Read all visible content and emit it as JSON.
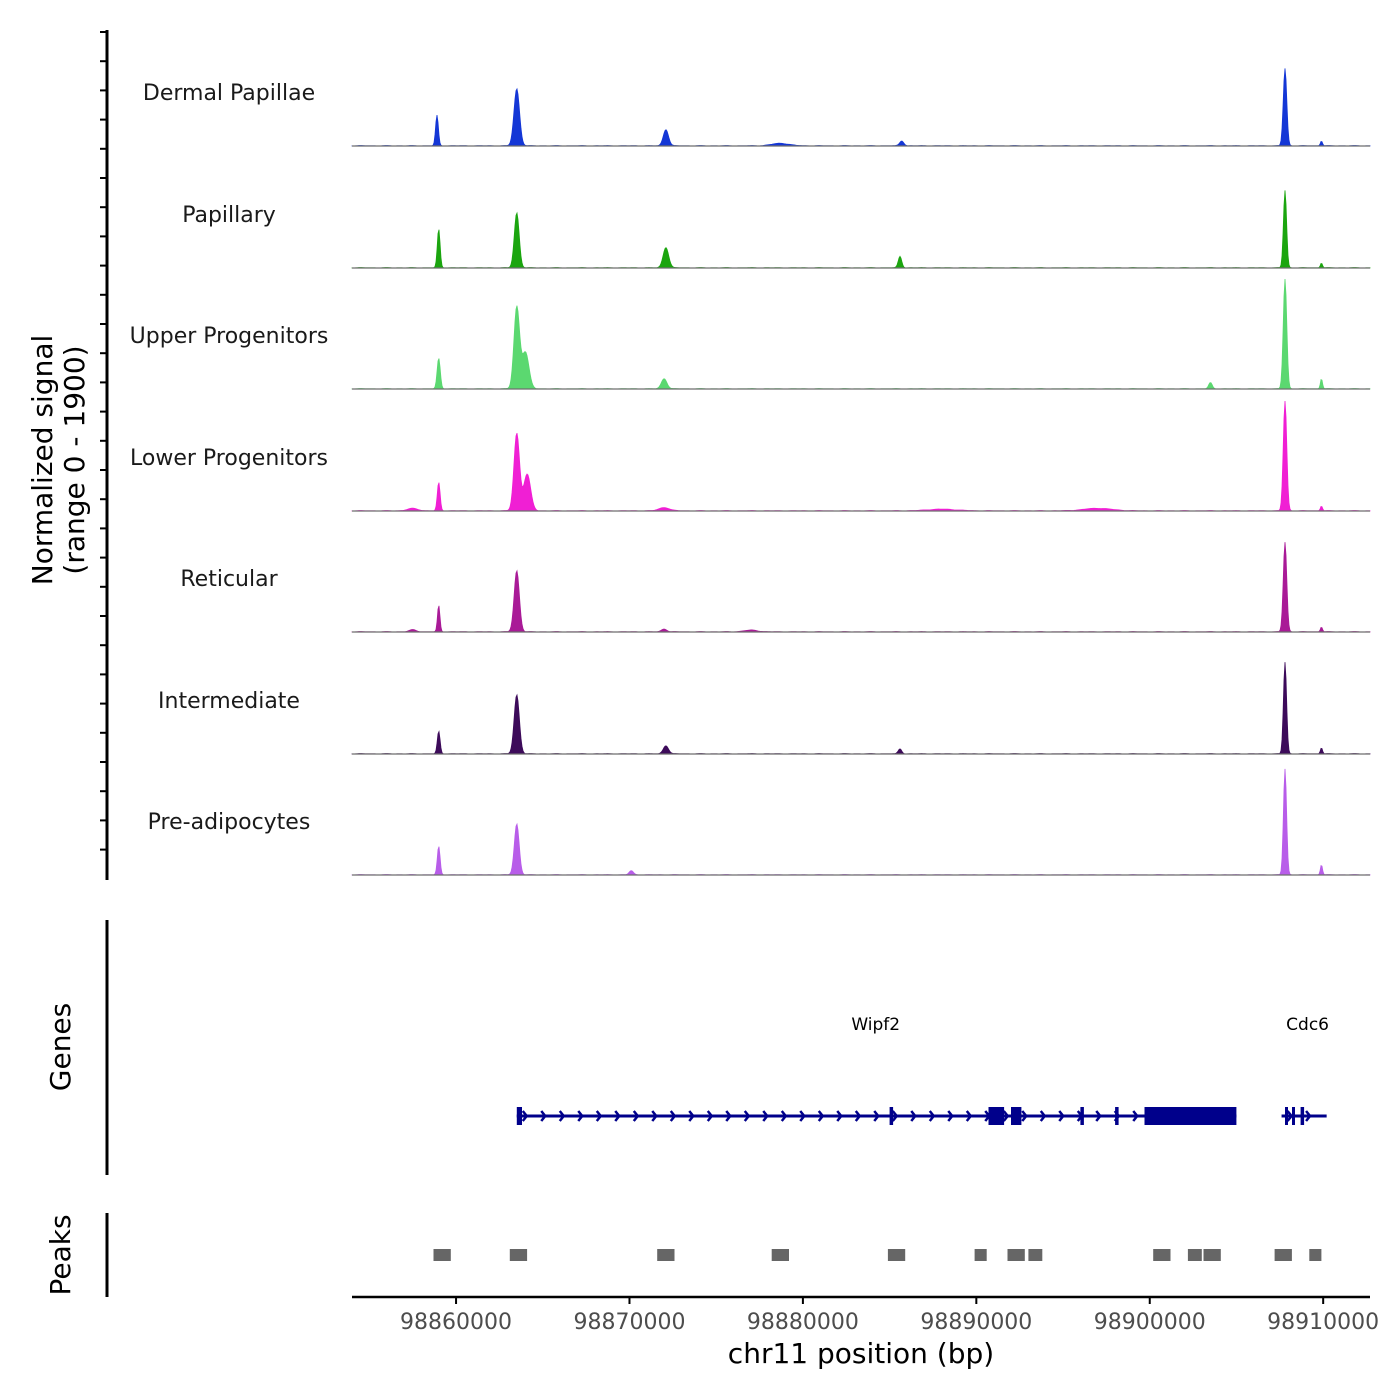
{
  "chart_data": {
    "type": "area",
    "title": "",
    "ylabel_line1": "Normalized signal",
    "ylabel_line2": "(range 0 - 1900)",
    "ylim": [
      0,
      1900
    ],
    "xlabel": "chr11 position (bp)",
    "xlim": [
      98854000,
      98912700
    ],
    "xticks": [
      98860000,
      98870000,
      98880000,
      98890000,
      98900000,
      98910000
    ],
    "xtick_labels": [
      "98860000",
      "98870000",
      "98880000",
      "98890000",
      "98900000",
      "98910000"
    ],
    "tracks": [
      {
        "name": "Dermal Papillae",
        "color": "#1437D6",
        "peaks": [
          [
            98858900,
            750,
            80
          ],
          [
            98863500,
            1400,
            160
          ],
          [
            98872100,
            400,
            150
          ],
          [
            98878700,
            60,
            500
          ],
          [
            98885700,
            120,
            120
          ],
          [
            98907800,
            1900,
            100
          ],
          [
            98909900,
            120,
            60
          ]
        ]
      },
      {
        "name": "Papillary",
        "color": "#1BA50F",
        "peaks": [
          [
            98859000,
            950,
            80
          ],
          [
            98863500,
            1350,
            140
          ],
          [
            98872100,
            500,
            160
          ],
          [
            98885600,
            280,
            100
          ],
          [
            98907800,
            1900,
            90
          ],
          [
            98909900,
            120,
            60
          ]
        ]
      },
      {
        "name": "Upper Progenitors",
        "color": "#5BD870",
        "peaks": [
          [
            98859000,
            750,
            90
          ],
          [
            98863500,
            2000,
            160
          ],
          [
            98864000,
            900,
            200
          ],
          [
            98872000,
            250,
            160
          ],
          [
            98903500,
            150,
            100
          ],
          [
            98907800,
            2700,
            100
          ],
          [
            98909900,
            250,
            60
          ]
        ]
      },
      {
        "name": "Lower Progenitors",
        "color": "#F01FD4",
        "peaks": [
          [
            98857500,
            60,
            300
          ],
          [
            98859000,
            700,
            80
          ],
          [
            98863500,
            1900,
            160
          ],
          [
            98864100,
            900,
            200
          ],
          [
            98872000,
            80,
            300
          ],
          [
            98888000,
            40,
            800
          ],
          [
            98897000,
            60,
            800
          ],
          [
            98907800,
            2700,
            100
          ],
          [
            98909900,
            120,
            60
          ]
        ]
      },
      {
        "name": "Reticular",
        "color": "#A91A97",
        "peaks": [
          [
            98857500,
            50,
            200
          ],
          [
            98859000,
            650,
            70
          ],
          [
            98863500,
            1500,
            150
          ],
          [
            98872000,
            70,
            150
          ],
          [
            98877000,
            40,
            400
          ],
          [
            98907800,
            2200,
            100
          ],
          [
            98909900,
            120,
            60
          ]
        ]
      },
      {
        "name": "Intermediate",
        "color": "#3D0B5A",
        "peaks": [
          [
            98859000,
            550,
            80
          ],
          [
            98863500,
            1450,
            150
          ],
          [
            98872100,
            200,
            150
          ],
          [
            98885600,
            120,
            100
          ],
          [
            98907800,
            2250,
            90
          ],
          [
            98909900,
            150,
            60
          ]
        ]
      },
      {
        "name": "Pre-adipocytes",
        "color": "#B85DE9",
        "peaks": [
          [
            98859000,
            700,
            80
          ],
          [
            98863500,
            1250,
            140
          ],
          [
            98870100,
            100,
            120
          ],
          [
            98907800,
            2600,
            90
          ],
          [
            98909900,
            250,
            60
          ]
        ]
      }
    ],
    "genes_label": "Genes",
    "genes": [
      {
        "name": "Wipf2",
        "label_pos": 98884200,
        "start": 98863500,
        "end": 98905000,
        "strand": "+",
        "exons": [
          [
            98863500,
            98863800
          ],
          [
            98885000,
            98885200
          ],
          [
            98890700,
            98891600
          ],
          [
            98892000,
            98892600
          ],
          [
            98896000,
            98896200
          ],
          [
            98898000,
            98898200
          ],
          [
            98899700,
            98905000
          ]
        ]
      },
      {
        "name": "Cdc6",
        "label_pos": 98909100,
        "start": 98907600,
        "end": 98910200,
        "strand": "+",
        "exons": [
          [
            98907800,
            98907950
          ],
          [
            98908200,
            98908350
          ],
          [
            98908700,
            98908900
          ]
        ]
      }
    ],
    "peaks_label": "Peaks",
    "peak_color": "#666666",
    "peak_regions": [
      [
        98858700,
        98859700
      ],
      [
        98863100,
        98864100
      ],
      [
        98871600,
        98872600
      ],
      [
        98878200,
        98879200
      ],
      [
        98884900,
        98885900
      ],
      [
        98889900,
        98890600
      ],
      [
        98891800,
        98892800
      ],
      [
        98893000,
        98893800
      ],
      [
        98900200,
        98901200
      ],
      [
        98902200,
        98903000
      ],
      [
        98903100,
        98904100
      ],
      [
        98907200,
        98908200
      ],
      [
        98909200,
        98909900
      ]
    ]
  }
}
